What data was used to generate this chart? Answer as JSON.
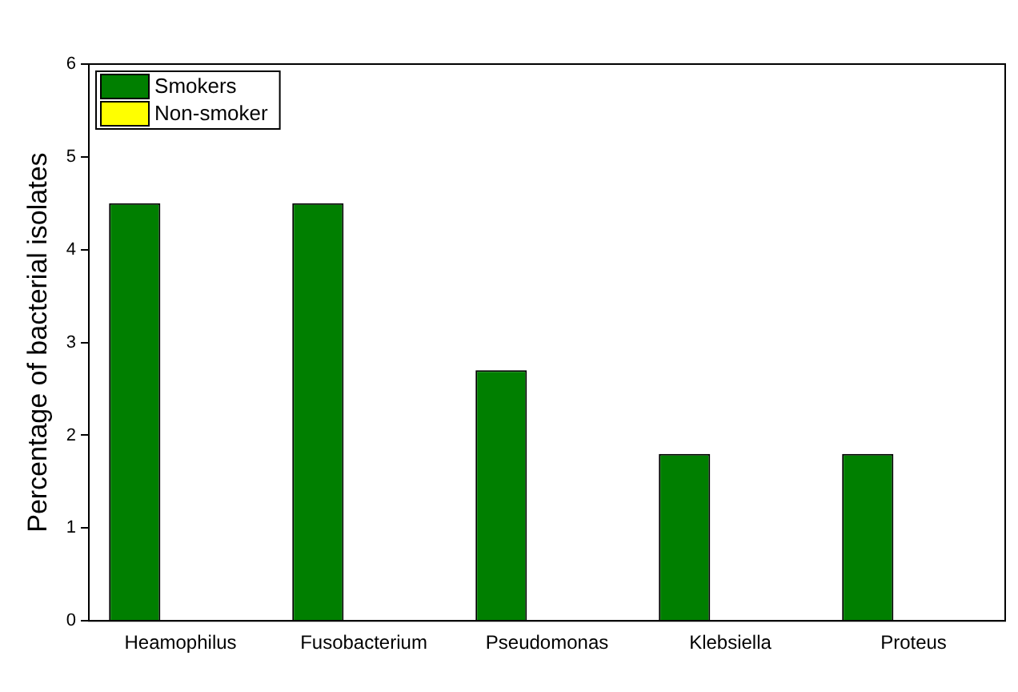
{
  "chart_data": {
    "type": "bar",
    "ylabel": "Percentage of bacterial isolates",
    "categories": [
      "Heamophilus",
      "Fusobacterium",
      "Pseudomonas",
      "Klebsiella",
      "Proteus"
    ],
    "series": [
      {
        "name": "Smokers",
        "color": "#007f00",
        "values": [
          4.5,
          4.5,
          2.7,
          1.8,
          1.8
        ]
      },
      {
        "name": "Non-smoker",
        "color": "#ffff00",
        "values": [
          0,
          0,
          0,
          0,
          0
        ]
      }
    ],
    "ylim": [
      0,
      6
    ],
    "yticks": [
      0,
      1,
      2,
      3,
      4,
      5,
      6
    ],
    "grid": false,
    "legend": "top left"
  }
}
